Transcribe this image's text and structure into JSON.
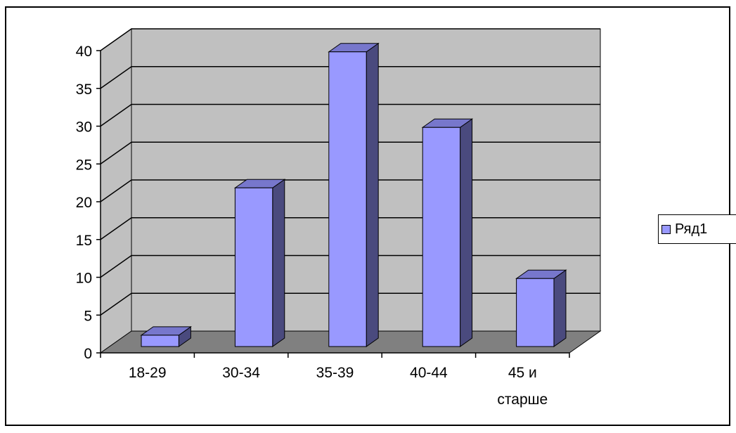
{
  "chart_data": {
    "type": "bar",
    "title": "",
    "xlabel": "",
    "ylabel": "",
    "categories": [
      "18-29",
      "30-34",
      "35-39",
      "40-44",
      "45 и старше"
    ],
    "category_lines": [
      [
        "18-29"
      ],
      [
        "30-34"
      ],
      [
        "35-39"
      ],
      [
        "40-44"
      ],
      [
        "45 и",
        "старше"
      ]
    ],
    "series": [
      {
        "name": "Ряд1",
        "values": [
          1.5,
          21,
          39,
          29,
          9
        ]
      }
    ],
    "ylim": [
      0,
      40
    ],
    "yticks": [
      "0",
      "5",
      "10",
      "15",
      "20",
      "25",
      "30",
      "35",
      "40"
    ],
    "grid": true,
    "legend_position": "right",
    "three_d": true
  },
  "colors": {
    "bar_front": "#9999FF",
    "bar_side": "#4A4A7E",
    "bar_top": "#7777CC",
    "wall": "#C0C0C0",
    "floor": "#808080",
    "outline": "#000000"
  }
}
